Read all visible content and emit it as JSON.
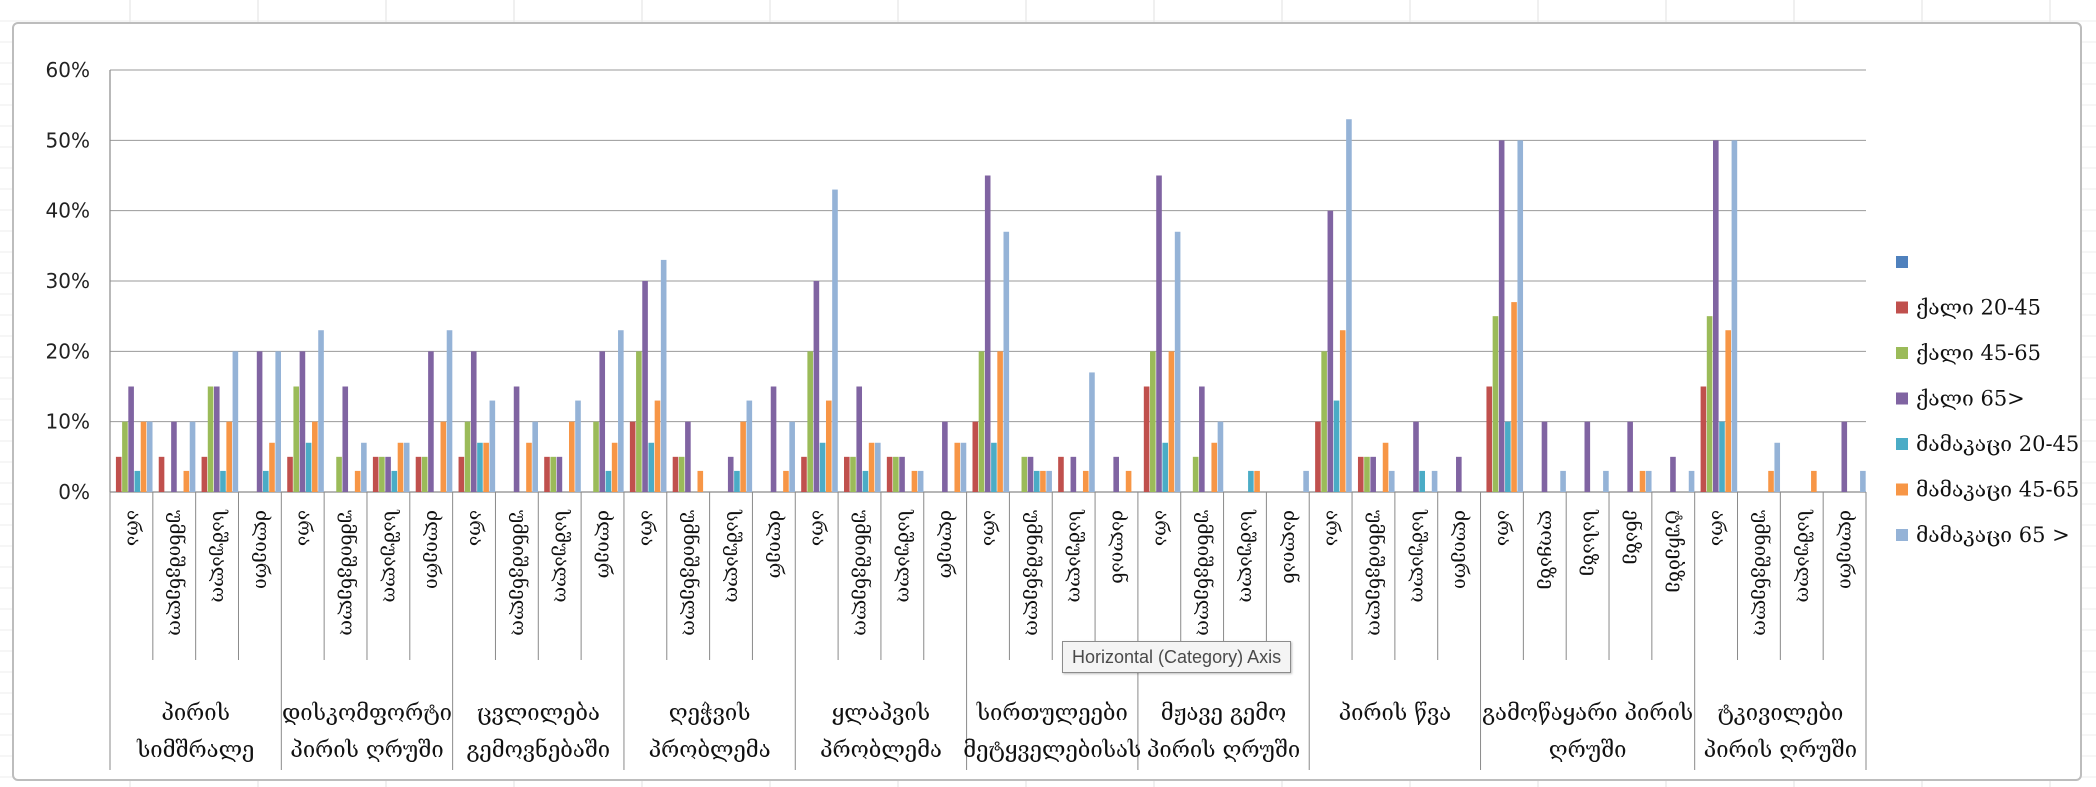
{
  "tooltip": {
    "text": "Horizontal (Category) Axis"
  },
  "chart_data": {
    "type": "bar",
    "ylim": [
      0,
      60
    ],
    "yticks": [
      "0%",
      "10%",
      "20%",
      "30%",
      "40%",
      "50%",
      "60%"
    ],
    "grid": true,
    "legend_position": "right",
    "groups": [
      {
        "label": [
          "პირის",
          "სიმშრალე"
        ],
        "categories": [
          "არა",
          "უმნიშვნელო",
          "საშუალო",
          "ძლიერი"
        ]
      },
      {
        "label": [
          "დისკომფორტი",
          "პირის ღრუში"
        ],
        "categories": [
          "არა",
          "უმნიშვნელო",
          "საშუალო",
          "ძლიერი"
        ]
      },
      {
        "label": [
          "ცვლილება",
          "გემოვნებაში"
        ],
        "categories": [
          "არა",
          "უმნიშვნელო",
          "საშუალო",
          "ძლიერ"
        ]
      },
      {
        "label": [
          "ღეჭვის",
          "პრობლემა"
        ],
        "categories": [
          "არა",
          "უმნიშვნელო",
          "საშუალო",
          "ძლიერ"
        ]
      },
      {
        "label": [
          "ყლაპვის",
          "პრობლემა"
        ],
        "categories": [
          "არა",
          "უმნიშვნელო",
          "საშუალო",
          "ძლიერ"
        ]
      },
      {
        "label": [
          "სირთულეები",
          "მეტყველებისას"
        ],
        "categories": [
          "არა",
          "უმნიშვნელო",
          "საშუალო",
          "ძალიან"
        ]
      },
      {
        "label": [
          "მჟავე გემო",
          "პირის ღრუში"
        ],
        "categories": [
          "არა",
          "უმნიშვნელო",
          "საშუალო",
          "ძალიან"
        ]
      },
      {
        "label": [
          "პირის წვა",
          ""
        ],
        "categories": [
          "არა",
          "უმნიშვნელო",
          "საშუალო",
          "ძლიერი"
        ]
      },
      {
        "label": [
          "გამოწაყარი პირის",
          "ღრუში"
        ],
        "categories": [
          "არა",
          "ლოყაზე",
          "სასაზე",
          "ენაზე",
          "ტუჩებზე"
        ]
      },
      {
        "label": [
          "ტკივილები",
          "პირის ღრუში"
        ],
        "categories": [
          "არა",
          "უმნიშვნელო",
          "საშუალო",
          "ძლიერი"
        ]
      }
    ],
    "series": [
      {
        "name": "",
        "color": "#4f81bd",
        "values": [
          0,
          0,
          0,
          0,
          0,
          0,
          0,
          0,
          0,
          0,
          0,
          0,
          0,
          0,
          0,
          0,
          0,
          0,
          0,
          0,
          0,
          0,
          0,
          0,
          0,
          0,
          0,
          0,
          0,
          0,
          0,
          0,
          0,
          0,
          0,
          0,
          0,
          0,
          0,
          0,
          0
        ]
      },
      {
        "name": "ქალი 20-45",
        "color": "#c0504d",
        "values": [
          5,
          5,
          5,
          0,
          5,
          0,
          5,
          5,
          5,
          0,
          5,
          0,
          10,
          5,
          0,
          0,
          5,
          5,
          5,
          0,
          10,
          0,
          5,
          0,
          15,
          0,
          0,
          0,
          10,
          5,
          0,
          0,
          15,
          0,
          0,
          0,
          0,
          15,
          0,
          0,
          0
        ]
      },
      {
        "name": "ქალი 45-65",
        "color": "#9bbb59",
        "values": [
          10,
          0,
          15,
          0,
          15,
          5,
          5,
          5,
          10,
          0,
          5,
          10,
          20,
          5,
          0,
          0,
          20,
          5,
          5,
          0,
          20,
          5,
          0,
          0,
          20,
          5,
          0,
          0,
          20,
          5,
          0,
          0,
          25,
          0,
          0,
          0,
          0,
          25,
          0,
          0,
          0
        ]
      },
      {
        "name": "ქალი 65>",
        "color": "#8064a2",
        "values": [
          15,
          10,
          15,
          20,
          20,
          15,
          5,
          20,
          20,
          15,
          5,
          20,
          30,
          10,
          5,
          15,
          30,
          15,
          5,
          10,
          45,
          5,
          5,
          5,
          45,
          15,
          0,
          0,
          40,
          5,
          10,
          5,
          50,
          10,
          10,
          10,
          5,
          50,
          0,
          0,
          10
        ]
      },
      {
        "name": "მამაკაცი 20-45",
        "color": "#4bacc6",
        "values": [
          3,
          0,
          3,
          3,
          7,
          0,
          3,
          0,
          7,
          0,
          0,
          3,
          7,
          0,
          3,
          0,
          7,
          3,
          0,
          0,
          7,
          3,
          0,
          0,
          7,
          0,
          3,
          0,
          13,
          0,
          3,
          0,
          10,
          0,
          0,
          0,
          0,
          10,
          0,
          0,
          0
        ]
      },
      {
        "name": "მამაკაცი 45-65",
        "color": "#f79646",
        "values": [
          10,
          3,
          10,
          7,
          10,
          3,
          7,
          10,
          7,
          7,
          10,
          7,
          13,
          3,
          10,
          3,
          13,
          7,
          3,
          7,
          20,
          3,
          3,
          3,
          20,
          7,
          3,
          0,
          23,
          7,
          0,
          0,
          27,
          0,
          0,
          3,
          0,
          23,
          3,
          3,
          0
        ]
      },
      {
        "name": "მამაკაცი 65 >",
        "color": "#95b3d7",
        "values": [
          10,
          10,
          20,
          20,
          23,
          7,
          7,
          23,
          13,
          10,
          13,
          23,
          33,
          0,
          13,
          10,
          43,
          7,
          3,
          7,
          37,
          3,
          17,
          0,
          37,
          10,
          0,
          3,
          53,
          3,
          3,
          0,
          50,
          3,
          3,
          3,
          3,
          50,
          7,
          0,
          3
        ]
      }
    ]
  }
}
